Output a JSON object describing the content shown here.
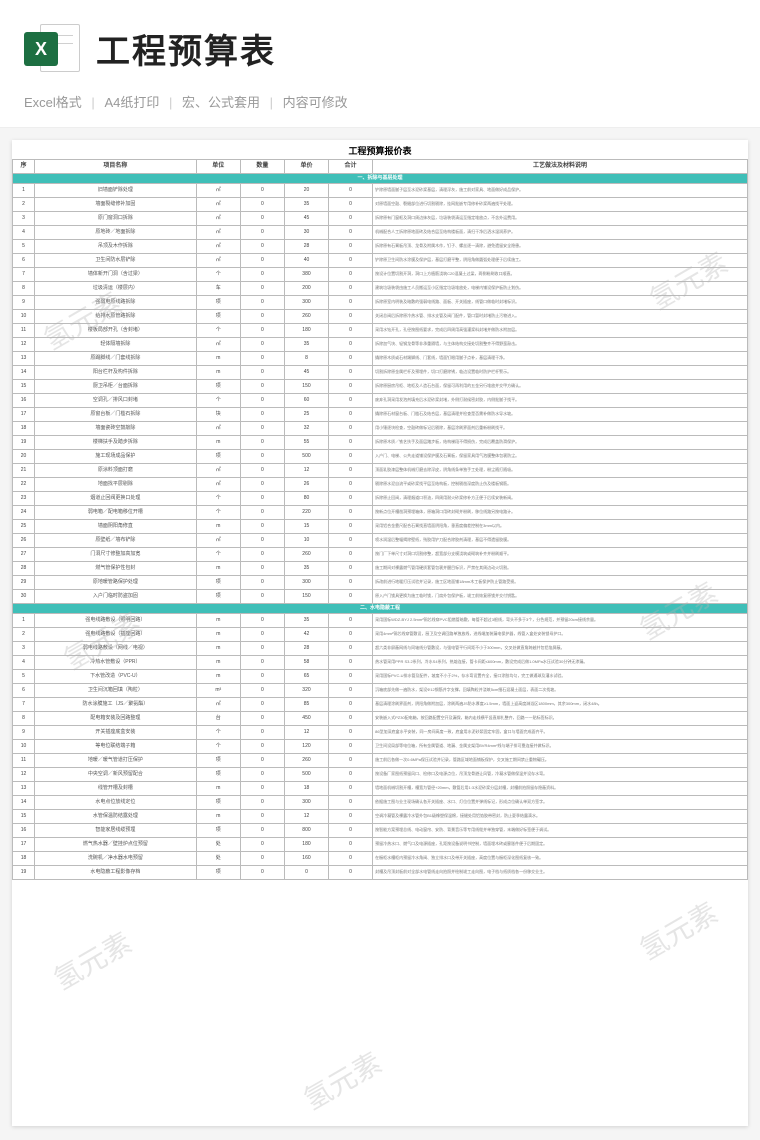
{
  "header": {
    "title": "工程预算表",
    "icon_letter": "X",
    "features": [
      "Excel格式",
      "A4纸打印",
      "宏、公式套用",
      "内容可修改"
    ]
  },
  "watermark_text": "氢元素",
  "sheet": {
    "title": "工程预算报价表",
    "columns": [
      {
        "label": "序",
        "width": "3%"
      },
      {
        "label": "项目名称",
        "width": "22%"
      },
      {
        "label": "单位",
        "width": "6%"
      },
      {
        "label": "数量",
        "width": "6%"
      },
      {
        "label": "单价",
        "width": "6%"
      },
      {
        "label": "合计",
        "width": "6%"
      },
      {
        "label": "工艺做法及材料说明",
        "width": "51%"
      }
    ],
    "sections": [
      {
        "heading": "一、拆除与基层处理",
        "rows": [
          {
            "n": "1",
            "name": "旧墙面铲除处理",
            "u": "㎡",
            "q": "0",
            "p": "20",
            "t": "0",
            "d": "铲除原墙面腻子层至水泥砂浆基层，清理浮灰，施工前对家具、地面做好成品保护。"
          },
          {
            "n": "2",
            "name": "墙面裂缝修补加固",
            "u": "㎡",
            "q": "0",
            "p": "35",
            "t": "0",
            "d": "对原墙面空鼓、裂缝部位进行切割剔除，挂网批嵌专用修补砂浆两遍找平处理。"
          },
          {
            "n": "3",
            "name": "原门窗洞口拆除",
            "u": "㎡",
            "q": "0",
            "p": "45",
            "t": "0",
            "d": "拆除原有门窗框及洞口周边抹灰层，垃圾装袋清运至指定堆放点，不含外运费用。"
          },
          {
            "n": "4",
            "name": "原地砖／地面拆除",
            "u": "㎡",
            "q": "0",
            "p": "30",
            "t": "0",
            "d": "机械配合人工拆除原地面砖及结合层至结构楼板面，清扫干净后洒水湿润养护。"
          },
          {
            "n": "5",
            "name": "吊顶及木作拆除",
            "u": "㎡",
            "q": "0",
            "p": "28",
            "t": "0",
            "d": "拆除原有石膏板吊顶、龙骨及附属木作，钉子、螺丝逐一清除，避免遗留安全隐患。"
          },
          {
            "n": "6",
            "name": "卫生间防水层铲除",
            "u": "㎡",
            "q": "0",
            "p": "40",
            "t": "0",
            "d": "铲除原卫生间防水涂膜及保护层，基层打磨平整，阴阳角做圆弧处理便于后续施工。"
          },
          {
            "n": "7",
            "name": "墙体新开门洞（含过梁）",
            "u": "个",
            "q": "0",
            "p": "380",
            "t": "0",
            "d": "按设计位置切割开洞，洞口上方植筋浇筑C20混凝土过梁，两侧粉刷收口顺直。"
          },
          {
            "n": "8",
            "name": "垃圾清运（楼层内）",
            "u": "车",
            "q": "0",
            "p": "200",
            "t": "0",
            "d": "建筑垃圾装袋由施工人员搬运至小区指定垃圾堆放处，电梯内铺设保护板防止划伤。"
          },
          {
            "n": "9",
            "name": "强弱电原线路拆除",
            "u": "项",
            "q": "0",
            "p": "300",
            "t": "0",
            "d": "拆除原室内明装及暗敷的强弱电线路、面板、开关插座，线管口做临时封堵标识。"
          },
          {
            "n": "10",
            "name": "给排水原管路拆除",
            "u": "项",
            "q": "0",
            "p": "260",
            "t": "0",
            "d": "关闭总阀后拆除原冷热水管、排水支管及阀门配件，管口暂时封堵防止污物进入。"
          },
          {
            "n": "11",
            "name": "楼板局部开孔（含封堵）",
            "u": "个",
            "q": "0",
            "p": "180",
            "t": "0",
            "d": "采用水钻开孔，孔径按图纸要求，完成后四周用高强灌浆料封堵并做防水附加层。"
          },
          {
            "n": "12",
            "name": "轻体隔墙拆除",
            "u": "㎡",
            "q": "0",
            "p": "35",
            "t": "0",
            "d": "拆除加气块、轻钢龙骨等非承重隔墙，与主体结构交接处切割整齐不得野蛮敲击。"
          },
          {
            "n": "13",
            "name": "原踢脚线／门套线拆除",
            "u": "m",
            "q": "0",
            "p": "8",
            "t": "0",
            "d": "撬除原木质或石材踢脚线、门套线，墙面钉眼用腻子点补，基层清理干净。"
          },
          {
            "n": "14",
            "name": "阳台栏杆及构件拆除",
            "u": "m",
            "q": "0",
            "p": "45",
            "t": "0",
            "d": "切割拆除原金属栏杆及预埋件，切口打磨除锈，临边设置临时防护栏杆警示。"
          },
          {
            "n": "15",
            "name": "厨卫吊柜／台面拆除",
            "u": "项",
            "q": "0",
            "p": "150",
            "t": "0",
            "d": "拆除原厨房吊柜、地柜及人造石台面，保留可再利用的五金另行堆放并交甲方确认。"
          },
          {
            "n": "16",
            "name": "空调孔／排风口封堵",
            "u": "个",
            "q": "0",
            "p": "60",
            "t": "0",
            "d": "废弃孔洞采用发泡剂填充后水泥砂浆封堵，外侧打耐候密封胶，内侧批腻子找平。"
          },
          {
            "n": "17",
            "name": "原窗台板／门槛石拆除",
            "u": "块",
            "q": "0",
            "p": "25",
            "t": "0",
            "d": "撬除原石材窗台板、门槛石及结合层，基层清理并检查是否需补做防水导水坡。"
          },
          {
            "n": "18",
            "name": "墙面瓷砖空鼓敲除",
            "u": "㎡",
            "q": "0",
            "p": "32",
            "t": "0",
            "d": "用小锤逐块检查，空鼓砖做标记后剔除，基层涂刷界面剂后重新粉刷找平。"
          },
          {
            "n": "19",
            "name": "楼梯扶手及踏步拆除",
            "u": "m",
            "q": "0",
            "p": "55",
            "t": "0",
            "d": "拆除原木质／铁艺扶手及面层踏步板，结构梯段不得损伤，完成后覆盖防滑保护。"
          },
          {
            "n": "20",
            "name": "施工现场成品保护",
            "u": "项",
            "q": "0",
            "p": "500",
            "t": "0",
            "d": "入户门、电梯、公共走道铺设保护膜及石膏板，保留家具用气泡膜整体包裹防尘。"
          },
          {
            "n": "21",
            "name": "原涂料顶面打磨",
            "u": "㎡",
            "q": "0",
            "p": "12",
            "t": "0",
            "d": "顶面乳胶漆层整体机械打磨去除浮皮，阴角线条单独手工处理，粉尘随打随吸。"
          },
          {
            "n": "22",
            "name": "地面找平层剔除",
            "u": "㎡",
            "q": "0",
            "p": "26",
            "t": "0",
            "d": "剔除原水泥自流平或砂浆找平层至结构板，控制剔凿深度防止伤及楼板钢筋。"
          },
          {
            "n": "23",
            "name": "烟道止回阀更换口处理",
            "u": "个",
            "q": "0",
            "p": "80",
            "t": "0",
            "d": "拆除原止回阀，清理烟道口积油，四周用耐火砂浆修补方正便于后续安装新阀。"
          },
          {
            "n": "24",
            "name": "弱电箱／配电箱移位开槽",
            "u": "个",
            "q": "0",
            "p": "220",
            "t": "0",
            "d": "按新点位开槽凿洞预埋箱体，原箱洞口用砖封砌并粉刷，移位线路另按电路计。"
          },
          {
            "n": "25",
            "name": "墙面阴阳角修直",
            "u": "m",
            "q": "0",
            "p": "15",
            "t": "0",
            "d": "采用铝合金靠尺配合石膏找直墙面阴阳角，垂直度偏差控制在3mm以内。"
          },
          {
            "n": "26",
            "name": "原壁纸／墙布铲除",
            "u": "㎡",
            "q": "0",
            "p": "10",
            "t": "0",
            "d": "喷水润湿后整幅揭除壁纸，残胶用铲刀配合除胶剂清理，基层不得遗留胶膜。"
          },
          {
            "n": "27",
            "name": "门洞尺寸修整加高加宽",
            "u": "个",
            "q": "0",
            "p": "260",
            "t": "0",
            "d": "按门厂下单尺寸对洞口切割修整，超宽部分支模浇筑或砌筑补齐并粉刷顺平。"
          },
          {
            "n": "28",
            "name": "燃气管保护性包封",
            "u": "m",
            "q": "0",
            "p": "35",
            "t": "0",
            "d": "施工期间对裸露燃气管用硬质套管包裹并醒目标识，严禁在其周边动火切割。"
          },
          {
            "n": "29",
            "name": "原地暖管路保护处理",
            "u": "项",
            "q": "0",
            "p": "300",
            "t": "0",
            "d": "拆改前进行地暖打压试验并记录，施工区地面铺18mm木工板保护防止管路受损。"
          },
          {
            "n": "30",
            "name": "入户门临时防盗加固",
            "u": "项",
            "q": "0",
            "p": "150",
            "t": "0",
            "d": "原入户门锁具更换为施工临时锁，门扇外包保护板，竣工前恢复原锁并交付钥匙。"
          }
        ]
      },
      {
        "heading": "二、水电隐蔽工程",
        "rows": [
          {
            "n": "1",
            "name": "强电线路敷设（照明回路）",
            "u": "m",
            "q": "0",
            "p": "35",
            "t": "0",
            "d": "采用国标WDZ-BYJ 2.5mm²铜芯线穿PVC阻燃管暗敷，每管不超过3根线，弯头不多于3个，分色规范，并预留20cm接线余量。"
          },
          {
            "n": "2",
            "name": "强电线路敷设（插座回路）",
            "u": "m",
            "q": "0",
            "p": "42",
            "t": "0",
            "d": "采用4mm²铜芯线穿管敷设，厨卫及空调回路单独放线，进线端加装漏电保护器，线管入盒处安装锁母护口。"
          },
          {
            "n": "3",
            "name": "弱电线路敷设（网线／电视）",
            "u": "m",
            "q": "0",
            "p": "28",
            "t": "0",
            "d": "超六类非屏蔽网线与同轴线分管敷设，与强电管平行间距不小于300mm，交叉处做直角跨越并包铝箔屏蔽。"
          },
          {
            "n": "4",
            "name": "冷热水管敷设（PPR）",
            "u": "m",
            "q": "0",
            "p": "58",
            "t": "0",
            "d": "热水管采用PPR S3.2系列，冷水S4系列，热熔连接，管卡间距≤600mm，敷设完成后做1.0MPa水压试验30分钟无渗漏。"
          },
          {
            "n": "5",
            "name": "下水管改造（PVC-U）",
            "u": "m",
            "q": "0",
            "p": "65",
            "t": "0",
            "d": "采用国标PVC-U排水管及配件，坡度不小于2%，存水弯设置齐全，接口涂胶均匀，完工做通球及灌水试验。"
          },
          {
            "n": "6",
            "name": "卫生间沉箱回填（陶粒）",
            "u": "m³",
            "q": "0",
            "p": "320",
            "t": "0",
            "d": "沉箱底部先做一遍防水，架设Φ12钢筋井字支撑，回填陶粒并浇筑5cm细石混凝土面层，表面二次找坡。"
          },
          {
            "n": "7",
            "name": "防水涂膜施工（JS／聚氨酯）",
            "u": "㎡",
            "q": "0",
            "p": "85",
            "t": "0",
            "d": "基层清理涂刷界面剂，阴阳角做附加层，涂刷两遍JS防水厚度≥1.5mm，墙面上返高度淋浴区1800mm，其余300mm，闭水48h。"
          },
          {
            "n": "8",
            "name": "配电箱安装及回路整理",
            "u": "台",
            "q": "0",
            "p": "450",
            "t": "0",
            "d": "安装嵌入式PZ30配电箱，按回路配置空开及漏保，箱内走线横平竖直绑扎整齐，回路一一贴标签标识。"
          },
          {
            "n": "9",
            "name": "开关插座底盒安装",
            "u": "个",
            "q": "0",
            "p": "12",
            "t": "0",
            "d": "86型加深底盒水平安装，同一房间高度一致，底盒用水泥砂浆固定牢固，盒口与墙面完成面齐平。"
          },
          {
            "n": "10",
            "name": "等电位联结端子箱",
            "u": "个",
            "q": "0",
            "p": "120",
            "t": "0",
            "d": "卫生间设局部等电位箱，所有金属管道、地漏、金属支架用BVR4mm²线与端子排可靠连接并做标识。"
          },
          {
            "n": "11",
            "name": "地暖／暖气管道打压保护",
            "u": "项",
            "q": "0",
            "p": "260",
            "t": "0",
            "d": "施工前后各做一次0.6MPa保压试验并记录，管路区域地面铺板保护，交叉施工期间禁止重物碾压。"
          },
          {
            "n": "12",
            "name": "中央空调／新风预留配合",
            "u": "项",
            "q": "0",
            "p": "500",
            "t": "0",
            "d": "按设备厂家图纸预留风口、检修口及电源点位，吊顶龙骨避让风管，冷凝水管做保温并设存水弯。"
          },
          {
            "n": "13",
            "name": "线管开槽及封槽",
            "u": "m",
            "q": "0",
            "p": "18",
            "t": "0",
            "d": "墙地面机械切割开槽，槽宽为管径+20mm，敷管后用1:3水泥砂浆分层封槽，封槽前拍照留存隐蔽资料。"
          },
          {
            "n": "14",
            "name": "水电点位放线定位",
            "u": "项",
            "q": "0",
            "p": "300",
            "t": "0",
            "d": "依据施工图与业主现场确认各开关插座、水口、灯位位置并弹线标记，形成点位确认单双方签字。"
          },
          {
            "n": "15",
            "name": "水管保温防结露处理",
            "u": "m",
            "q": "0",
            "p": "12",
            "t": "0",
            "d": "空调冷凝管及裸露冷水管外包B1级橡塑保温棉，接缝处用铝箔胶带密封，防止夏季结露滴水。"
          },
          {
            "n": "16",
            "name": "智能家居线缆预埋",
            "u": "项",
            "q": "0",
            "p": "800",
            "t": "0",
            "d": "按智能方案预埋总线、电动窗帘、安防、背景音乐等专用线缆并单独穿管，末端做好标签便于调试。"
          },
          {
            "n": "17",
            "name": "燃气热水器／壁挂炉点位预留",
            "u": "处",
            "q": "0",
            "p": "180",
            "t": "0",
            "d": "预留冷热水口、燃气口及电源插座，孔距按设备说明书控制，墙面埋木砖或膨胀件便于后期固定。"
          },
          {
            "n": "18",
            "name": "洗碗机／净水器水电预留",
            "u": "处",
            "q": "0",
            "p": "160",
            "t": "0",
            "d": "在橱柜水槽柜内预留冷水角阀、独立排水口及带开关插座，高度位置与橱柜深化图纸复核一致。"
          },
          {
            "n": "19",
            "name": "水电隐蔽工程影像存档",
            "u": "项",
            "q": "0",
            "p": "0",
            "t": "0",
            "d": "封槽及吊顶封板前对全部水电管线走向拍照并绘制竣工走向图，电子档与纸质档各一份移交业主。"
          }
        ]
      }
    ]
  },
  "styling": {
    "accent_color": "#3fbfb8",
    "excel_green": "#1d6f42",
    "title_color": "#222222",
    "subtitle_color": "#999999",
    "border_color": "#bbbbbb",
    "page_bg": "#f5f5f5",
    "col_widths_pct": [
      3,
      22,
      6,
      6,
      6,
      6,
      51
    ]
  }
}
